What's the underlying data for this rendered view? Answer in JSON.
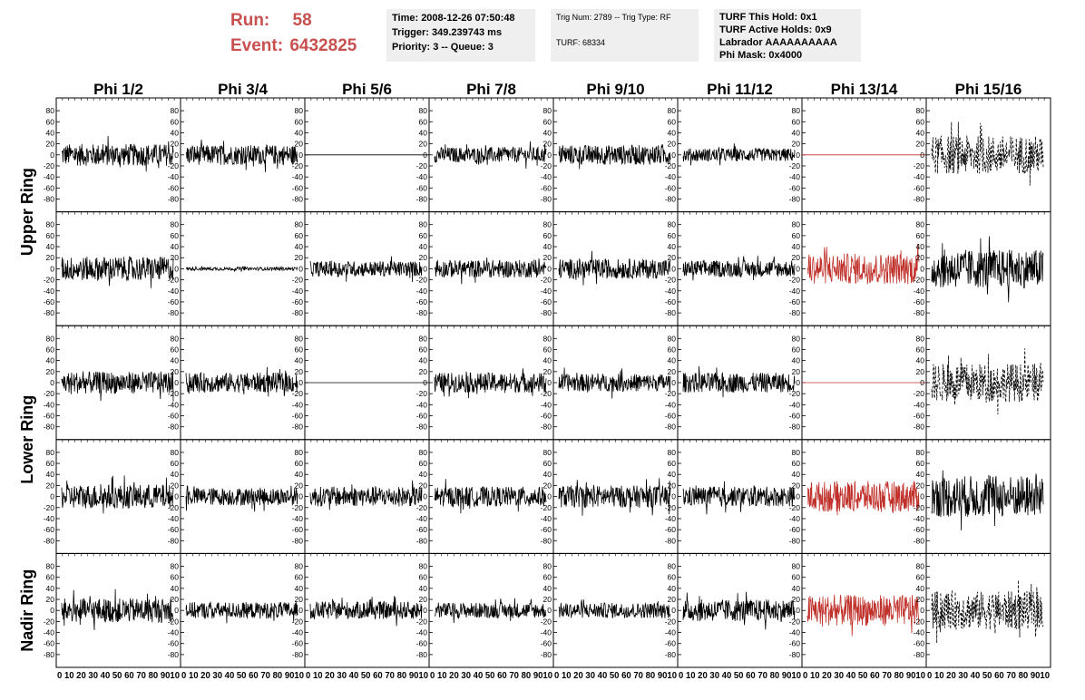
{
  "header": {
    "run_label": "Run:",
    "run_value": "58",
    "event_label": "Event:",
    "event_value": "6432825"
  },
  "info": {
    "time": "Time: 2008-12-26 07:50:48",
    "trigger": "Trigger: 349.239743 ms",
    "priority": "Priority: 3 -- Queue: 3",
    "trig_num": "Trig Num: 2789 -- Trig Type: RF",
    "turf": "TURF: 68334",
    "turf_this_hold": "TURF This Hold: 0x1",
    "turf_active_holds": "TURF Active Holds: 0x9",
    "labrador": "Labrador AAAAAAAAAA",
    "phi_mask": "Phi Mask: 0x4000"
  },
  "colors": {
    "trace": "#000000",
    "masked_trace": "#c0312b",
    "header_red": "#c8504f",
    "info_bg": "#efefef"
  },
  "chart_data": {
    "type": "line",
    "column_labels": [
      "Phi 1/2",
      "Phi 3/4",
      "Phi 5/6",
      "Phi 7/8",
      "Phi 9/10",
      "Phi 11/12",
      "Phi 13/14",
      "Phi 15/16"
    ],
    "ring_labels": [
      "Upper Ring",
      "Lower Ring",
      "Nadir Ring"
    ],
    "ylim": [
      -90,
      90
    ],
    "yticks": [
      -80,
      -60,
      -40,
      -20,
      0,
      20,
      40,
      60,
      80
    ],
    "xlim": [
      0,
      100
    ],
    "xticks": [
      0,
      10,
      20,
      30,
      40,
      50,
      60,
      70,
      80,
      90,
      100
    ],
    "x_tick_labels_row": "0 10 20 30 40 50 60 70 80 9010",
    "rows": [
      [
        {
          "style": "noise",
          "amp": 20,
          "color": "black"
        },
        {
          "style": "noise",
          "amp": 18,
          "color": "black"
        },
        {
          "style": "flat",
          "amp": 0,
          "color": "black"
        },
        {
          "style": "noise",
          "amp": 14,
          "color": "black"
        },
        {
          "style": "noise",
          "amp": 18,
          "color": "black"
        },
        {
          "style": "noise",
          "amp": 12,
          "color": "black"
        },
        {
          "style": "flat",
          "amp": 0,
          "color": "red"
        },
        {
          "style": "dashed",
          "amp": 35,
          "color": "black"
        }
      ],
      [
        {
          "style": "noise",
          "amp": 22,
          "color": "black"
        },
        {
          "style": "noise",
          "amp": 3,
          "color": "black"
        },
        {
          "style": "noise",
          "amp": 14,
          "color": "black"
        },
        {
          "style": "noise",
          "amp": 16,
          "color": "black"
        },
        {
          "style": "noise",
          "amp": 18,
          "color": "black"
        },
        {
          "style": "noise",
          "amp": 15,
          "color": "black"
        },
        {
          "style": "noise",
          "amp": 28,
          "color": "red"
        },
        {
          "style": "noise",
          "amp": 35,
          "color": "black"
        }
      ],
      [
        {
          "style": "noise",
          "amp": 20,
          "color": "black"
        },
        {
          "style": "noise",
          "amp": 18,
          "color": "black"
        },
        {
          "style": "flat",
          "amp": 0,
          "color": "black"
        },
        {
          "style": "noise",
          "amp": 18,
          "color": "black"
        },
        {
          "style": "noise",
          "amp": 16,
          "color": "black"
        },
        {
          "style": "noise",
          "amp": 18,
          "color": "black"
        },
        {
          "style": "flat",
          "amp": 0,
          "color": "red"
        },
        {
          "style": "dashed",
          "amp": 35,
          "color": "black"
        }
      ],
      [
        {
          "style": "noise",
          "amp": 22,
          "color": "black"
        },
        {
          "style": "noise",
          "amp": 16,
          "color": "black"
        },
        {
          "style": "noise",
          "amp": 18,
          "color": "black"
        },
        {
          "style": "noise",
          "amp": 18,
          "color": "black"
        },
        {
          "style": "noise",
          "amp": 20,
          "color": "black"
        },
        {
          "style": "noise",
          "amp": 18,
          "color": "black"
        },
        {
          "style": "noise",
          "amp": 28,
          "color": "red"
        },
        {
          "style": "noise",
          "amp": 38,
          "color": "black"
        }
      ],
      [
        {
          "style": "noise",
          "amp": 22,
          "color": "black"
        },
        {
          "style": "noise",
          "amp": 15,
          "color": "black"
        },
        {
          "style": "noise",
          "amp": 16,
          "color": "black"
        },
        {
          "style": "noise",
          "amp": 14,
          "color": "black"
        },
        {
          "style": "noise",
          "amp": 14,
          "color": "black"
        },
        {
          "style": "noise",
          "amp": 20,
          "color": "black"
        },
        {
          "style": "noise",
          "amp": 28,
          "color": "red"
        },
        {
          "style": "dashed",
          "amp": 35,
          "color": "black"
        }
      ]
    ]
  }
}
